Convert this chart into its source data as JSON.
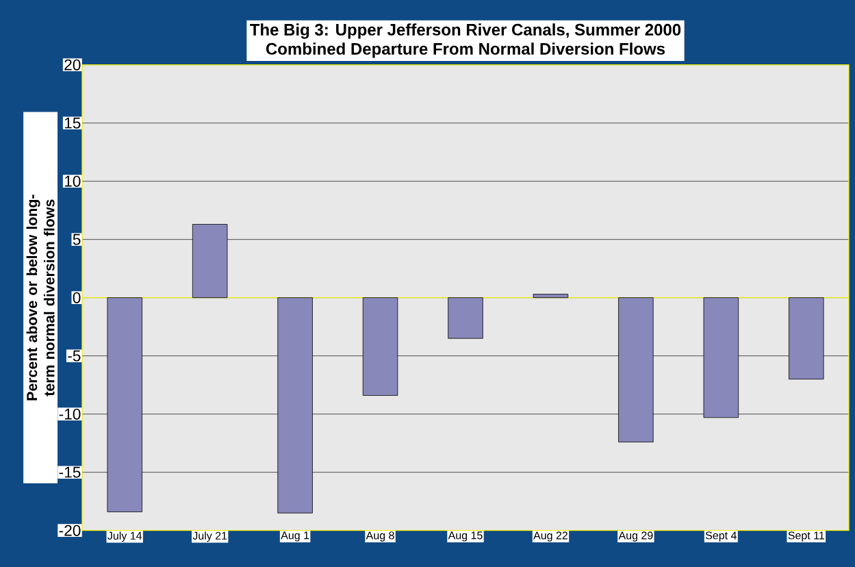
{
  "chart_data": {
    "type": "bar",
    "title": "The Big 3: Upper Jefferson River Canals, Summer 2000",
    "subtitle": "Combined Departure From Normal Diversion Flows",
    "ylabel": "Percent above or below long-term normal diversion flows",
    "categories": [
      "July 14",
      "July 21",
      "Aug 1",
      "Aug 8",
      "Aug 15",
      "Aug 22",
      "Aug 29",
      "Sept 4",
      "Sept 11"
    ],
    "values": [
      -18.4,
      6.3,
      -18.5,
      -8.4,
      -3.5,
      0.3,
      -12.4,
      -10.3,
      -7.0
    ],
    "color": "#8888bb",
    "ylim": [
      -20,
      20
    ],
    "yticks": [
      -20,
      -15,
      -10,
      -5,
      0,
      5,
      10,
      15,
      20
    ],
    "grid": "y",
    "ref_lines": [
      {
        "axis": "y",
        "value": 0,
        "color": "#f0f000"
      }
    ]
  }
}
